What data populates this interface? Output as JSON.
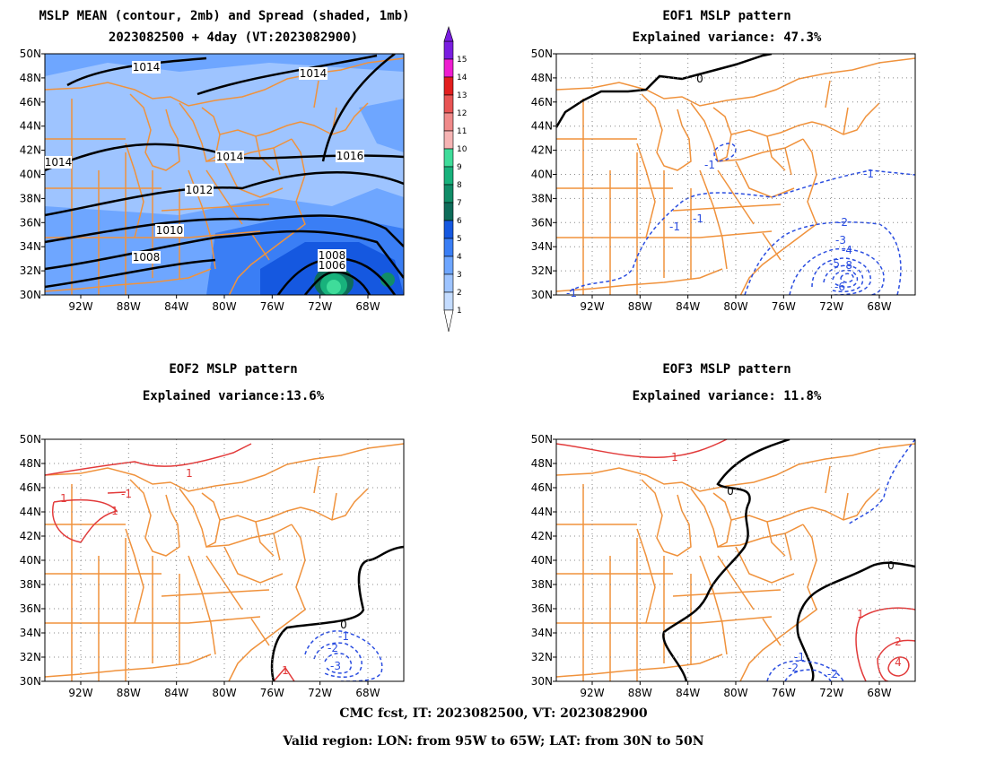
{
  "panels": [
    {
      "id": "mean",
      "title1": "MSLP MEAN (contour, 2mb) and Spread (shaded, 1mb)",
      "title2": "2023082500 + 4day (VT:2023082900)"
    },
    {
      "id": "eof1",
      "title1": "EOF1 MSLP pattern",
      "title2": "Explained variance: 47.3%"
    },
    {
      "id": "eof2",
      "title1": "EOF2 MSLP pattern",
      "title2": "Explained variance:13.6%"
    },
    {
      "id": "eof3",
      "title1": "EOF3 MSLP pattern",
      "title2": "Explained variance: 11.8%"
    }
  ],
  "lat_labels": [
    "50N",
    "48N",
    "46N",
    "44N",
    "42N",
    "40N",
    "38N",
    "36N",
    "34N",
    "32N",
    "30N"
  ],
  "lon_labels": [
    "92W",
    "88W",
    "84W",
    "80W",
    "76W",
    "72W",
    "68W"
  ],
  "colorbar": {
    "levels": [
      "1",
      "2",
      "3",
      "4",
      "5",
      "6",
      "7",
      "8",
      "9",
      "10",
      "11",
      "12",
      "13",
      "14",
      "15"
    ],
    "colors": [
      "#c4dcff",
      "#9ec4ff",
      "#6ea6ff",
      "#3a7ef5",
      "#1558e0",
      "#0e6c5a",
      "#118d68",
      "#18b27c",
      "#3fdc9a",
      "#f6b4b4",
      "#f08a8a",
      "#e85454",
      "#e21e1e",
      "#ee1dd0",
      "#7a1de0"
    ]
  },
  "mean_labels": [
    "1014",
    "1014",
    "1014",
    "1014",
    "1016",
    "1012",
    "1010",
    "1008",
    "1008",
    "1006"
  ],
  "eof1_labels": [
    "0",
    "-1",
    "-1",
    "-1",
    "-1",
    "-2",
    "-3",
    "-4",
    "-5",
    "-6",
    "-8",
    "-1"
  ],
  "eof2_labels": [
    "1",
    "1",
    "-1",
    "1",
    "0",
    "-1",
    "-2",
    "-3",
    "1"
  ],
  "eof3_labels": [
    "1",
    "0",
    "0",
    "1",
    "2",
    "4",
    "-1",
    "-2",
    "-2"
  ],
  "footer": {
    "line1": "CMC fcst, IT: 2023082500, VT: 2023082900",
    "line2": "Valid region: LON: from 95W to 65W; LAT: from 30N to 50N"
  },
  "colors": {
    "map_lines": "#f0923c",
    "neg_contour": "#2a4de0",
    "pos_contour": "#e23a3a",
    "zero_contour": "#000000",
    "grid": "#888888"
  }
}
